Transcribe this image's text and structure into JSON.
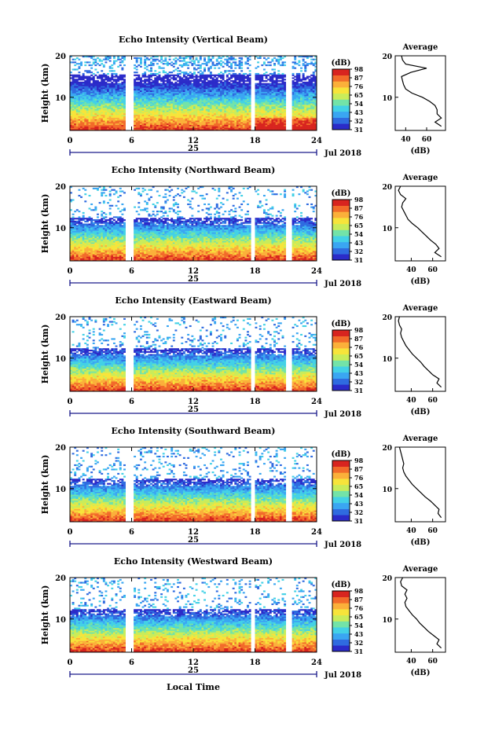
{
  "figure": {
    "date_label": "Jul 2018",
    "day_label": "25",
    "x_axis_title": "Local Time",
    "y_axis_title": "Height (km)",
    "colorbar_unit": "(dB)",
    "average_title": "Average",
    "average_unit": "(dB)"
  },
  "colors": {
    "colormap": [
      "#2b2bc9",
      "#2f6be0",
      "#3aa6f2",
      "#43d1e6",
      "#73e3a8",
      "#c9ec5a",
      "#f7e43a",
      "#fbb03a",
      "#f26b2a",
      "#d8241f"
    ],
    "gap": "#ffffff",
    "background": "#ffffff"
  },
  "chart_data": [
    {
      "type": "heatmap",
      "title": "Echo Intensity (Vertical Beam)",
      "xlabel": "",
      "ylabel": "Height (km)",
      "xlim": [
        0,
        24
      ],
      "ylim": [
        2,
        20
      ],
      "x_ticks": [
        "0",
        "6",
        "12",
        "18",
        "24"
      ],
      "y_ticks": [
        "10",
        "20"
      ],
      "colorbar_ticks": [
        "31",
        "32",
        "43",
        "54",
        "65",
        "76",
        "87",
        "98"
      ],
      "data_gaps_hours": [
        [
          5.5,
          6.1
        ],
        [
          17.6,
          18.0
        ],
        [
          21.1,
          21.5
        ]
      ],
      "profile": {
        "xlabel": "(dB)",
        "xlim": [
          30,
          78
        ],
        "x_ticks": [
          "40",
          "60"
        ],
        "heights_km": [
          3,
          4,
          5,
          6,
          7,
          8,
          9,
          10,
          11,
          12,
          13,
          14,
          15,
          16,
          17,
          18,
          19,
          20
        ],
        "values_db": [
          74,
          68,
          74,
          70,
          70,
          68,
          63,
          56,
          46,
          40,
          38,
          37,
          36,
          45,
          60,
          40,
          37,
          36
        ]
      }
    },
    {
      "type": "heatmap",
      "title": "Echo Intensity (Northward Beam)",
      "xlabel": "",
      "ylabel": "Height (km)",
      "xlim": [
        0,
        24
      ],
      "ylim": [
        2,
        20
      ],
      "x_ticks": [
        "0",
        "6",
        "12",
        "18",
        "24"
      ],
      "y_ticks": [
        "10",
        "20"
      ],
      "colorbar_ticks": [
        "31",
        "32",
        "43",
        "54",
        "65",
        "76",
        "87",
        "98"
      ],
      "data_gaps_hours": [
        [
          5.5,
          6.1
        ],
        [
          17.6,
          18.0
        ],
        [
          21.1,
          21.5
        ]
      ],
      "profile": {
        "xlabel": "(dB)",
        "xlim": [
          25,
          72
        ],
        "x_ticks": [
          "40",
          "60"
        ],
        "heights_km": [
          3,
          4,
          5,
          6,
          7,
          8,
          9,
          10,
          11,
          12,
          13,
          14,
          15,
          16,
          17,
          18,
          19,
          20
        ],
        "values_db": [
          68,
          62,
          66,
          63,
          58,
          54,
          50,
          46,
          41,
          37,
          35,
          33,
          31,
          32,
          35,
          30,
          28,
          30
        ]
      }
    },
    {
      "type": "heatmap",
      "title": "Echo Intensity (Eastward Beam)",
      "xlabel": "",
      "ylabel": "Height (km)",
      "xlim": [
        0,
        24
      ],
      "ylim": [
        2,
        20
      ],
      "x_ticks": [
        "0",
        "6",
        "12",
        "18",
        "24"
      ],
      "y_ticks": [
        "10",
        "20"
      ],
      "colorbar_ticks": [
        "31",
        "32",
        "43",
        "54",
        "65",
        "76",
        "87",
        "98"
      ],
      "data_gaps_hours": [
        [
          5.5,
          6.1
        ],
        [
          17.6,
          18.0
        ],
        [
          21.1,
          21.5
        ]
      ],
      "profile": {
        "xlabel": "(dB)",
        "xlim": [
          25,
          72
        ],
        "x_ticks": [
          "40",
          "60"
        ],
        "heights_km": [
          3,
          4,
          5,
          6,
          7,
          8,
          9,
          10,
          11,
          12,
          13,
          14,
          15,
          16,
          17,
          18,
          19,
          20
        ],
        "values_db": [
          68,
          64,
          66,
          60,
          56,
          52,
          49,
          45,
          41,
          38,
          35,
          33,
          31,
          30,
          31,
          29,
          28,
          29
        ]
      }
    },
    {
      "type": "heatmap",
      "title": "Echo Intensity (Southward Beam)",
      "xlabel": "",
      "ylabel": "Height (km)",
      "xlim": [
        0,
        24
      ],
      "ylim": [
        2,
        20
      ],
      "x_ticks": [
        "0",
        "6",
        "12",
        "18",
        "24"
      ],
      "y_ticks": [
        "10",
        "20"
      ],
      "colorbar_ticks": [
        "31",
        "32",
        "43",
        "54",
        "65",
        "76",
        "87",
        "98"
      ],
      "data_gaps_hours": [
        [
          5.5,
          6.1
        ],
        [
          17.6,
          18.0
        ],
        [
          21.1,
          21.5
        ]
      ],
      "profile": {
        "xlabel": "(dB)",
        "xlim": [
          25,
          72
        ],
        "x_ticks": [
          "40",
          "60"
        ],
        "heights_km": [
          3,
          4,
          5,
          6,
          7,
          8,
          9,
          10,
          11,
          12,
          13,
          14,
          15,
          16,
          17,
          18,
          19,
          20
        ],
        "values_db": [
          68,
          65,
          66,
          62,
          58,
          53,
          49,
          45,
          41,
          38,
          35,
          33,
          32,
          33,
          32,
          31,
          30,
          29
        ]
      }
    },
    {
      "type": "heatmap",
      "title": "Echo Intensity (Westward Beam)",
      "xlabel": "Local Time",
      "ylabel": "Height (km)",
      "xlim": [
        0,
        24
      ],
      "ylim": [
        2,
        20
      ],
      "x_ticks": [
        "0",
        "6",
        "12",
        "18",
        "24"
      ],
      "y_ticks": [
        "10",
        "20"
      ],
      "colorbar_ticks": [
        "31",
        "32",
        "43",
        "54",
        "65",
        "76",
        "87",
        "98"
      ],
      "data_gaps_hours": [
        [
          5.5,
          6.1
        ],
        [
          17.6,
          18.0
        ],
        [
          21.1,
          21.5
        ]
      ],
      "profile": {
        "xlabel": "(dB)",
        "xlim": [
          25,
          72
        ],
        "x_ticks": [
          "40",
          "60"
        ],
        "heights_km": [
          3,
          4,
          5,
          6,
          7,
          8,
          9,
          10,
          11,
          12,
          13,
          14,
          15,
          16,
          17,
          18,
          19,
          20
        ],
        "values_db": [
          68,
          64,
          66,
          61,
          56,
          52,
          48,
          45,
          41,
          38,
          35,
          34,
          36,
          34,
          36,
          31,
          30,
          32
        ]
      }
    }
  ]
}
